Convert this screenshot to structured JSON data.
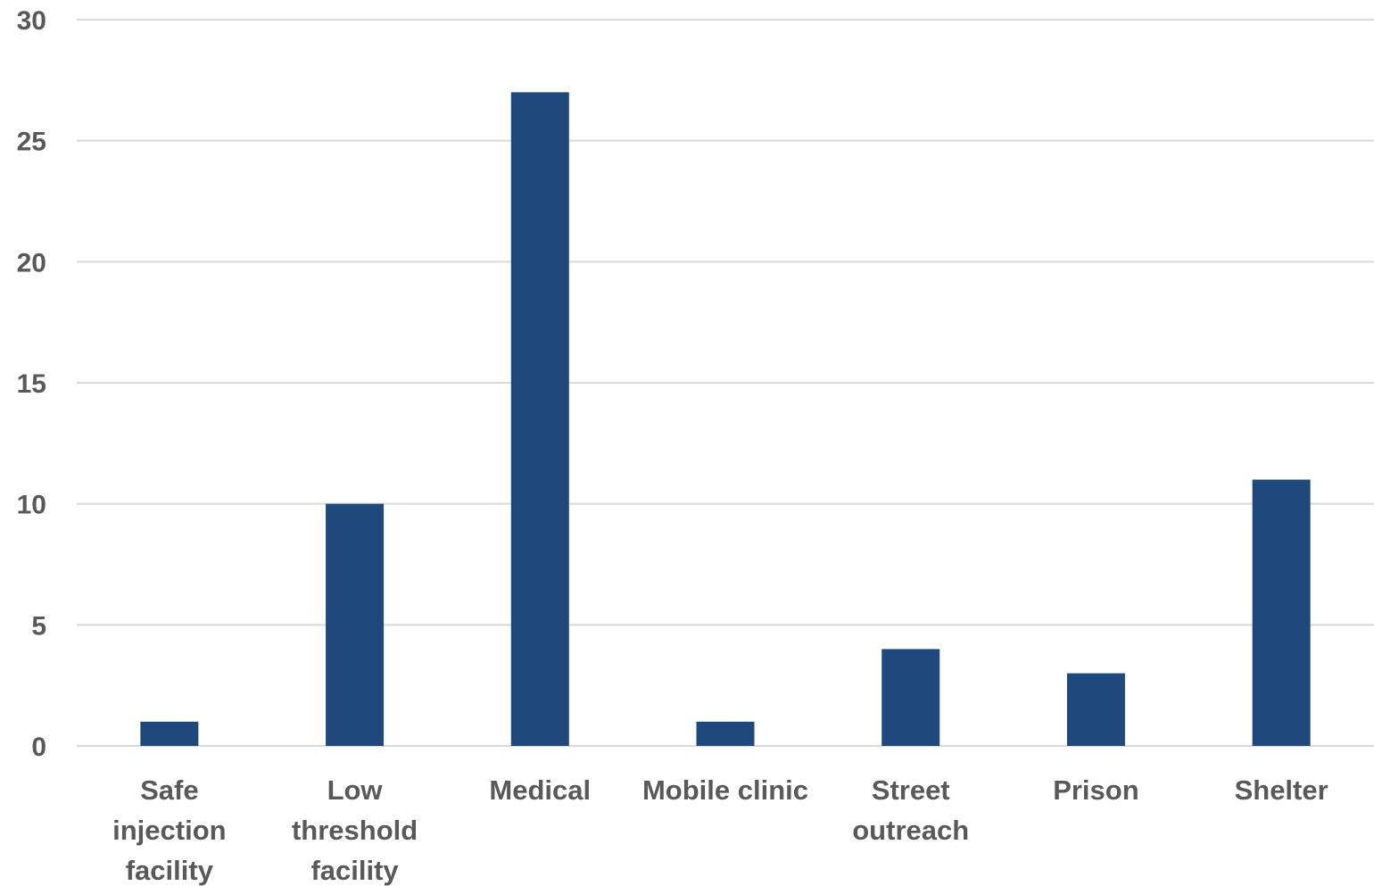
{
  "chart_data": {
    "type": "bar",
    "categories": [
      "Safe injection facility",
      "Low threshold facility",
      "Medical",
      "Mobile clinic",
      "Street outreach",
      "Prison",
      "Shelter"
    ],
    "category_label_lines": [
      [
        "Safe",
        "injection",
        "facility"
      ],
      [
        "Low",
        "threshold",
        "facility"
      ],
      [
        "Medical"
      ],
      [
        "Mobile clinic"
      ],
      [
        "Street",
        "outreach"
      ],
      [
        "Prison"
      ],
      [
        "Shelter"
      ]
    ],
    "values": [
      1,
      10,
      27,
      1,
      4,
      3,
      11
    ],
    "title": "",
    "xlabel": "",
    "ylabel": "",
    "ylim": [
      0,
      30
    ],
    "yticks": [
      0,
      5,
      10,
      15,
      20,
      25,
      30
    ],
    "grid": true,
    "legend": "none",
    "colors": {
      "bar": "#1f497d",
      "gridline": "#d9d9d9",
      "tick_text": "#595959"
    }
  }
}
